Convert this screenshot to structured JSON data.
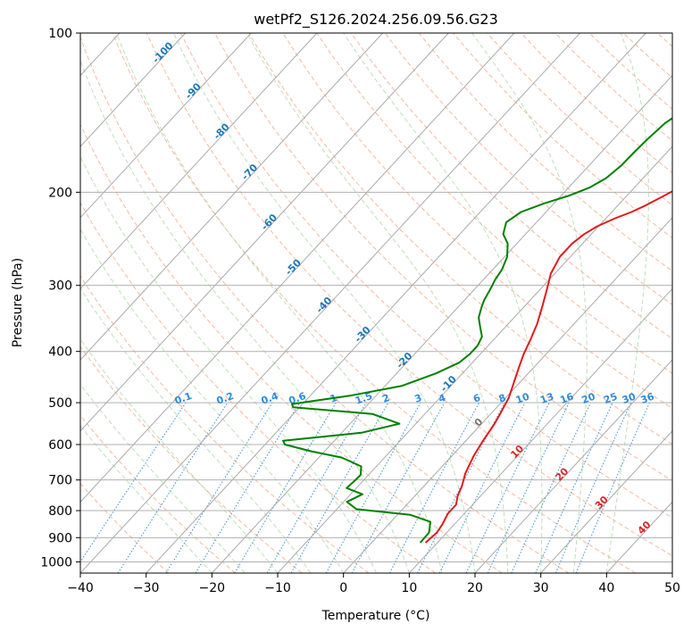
{
  "chart_data": {
    "type": "line",
    "title": "wetPf2_S126.2024.256.09.56.G23",
    "xlabel": "Temperature (°C)",
    "ylabel": "Pressure (hPa)",
    "xlim": [
      -40,
      50
    ],
    "ylim": [
      1050,
      100
    ],
    "y_scale": "log",
    "x_ticks": [
      -40,
      -30,
      -20,
      -10,
      0,
      10,
      20,
      30,
      40,
      50
    ],
    "y_ticks": [
      100,
      200,
      300,
      400,
      500,
      600,
      700,
      800,
      900,
      1000
    ],
    "grid": true,
    "background_lines": {
      "dry_adiabats": true,
      "moist_adiabats": true,
      "mixing_ratio_lines": true,
      "skewed_isotherms": true
    },
    "isotherm_labels": [
      "-100",
      "-90",
      "-80",
      "-70",
      "-60",
      "-50",
      "-40",
      "-30",
      "-20",
      "-10",
      "0",
      "10",
      "20",
      "30",
      "40"
    ],
    "mixing_ratio_labels": [
      "0.1",
      "0.2",
      "0.4",
      "0.6",
      "1",
      "1.5",
      "2",
      "3",
      "4",
      "6",
      "8",
      "10",
      "13",
      "16",
      "20",
      "25",
      "30",
      "36"
    ],
    "series": [
      {
        "color": "#e41a1c",
        "points": [
          [
            8.2,
            920
          ],
          [
            8.5,
            880
          ],
          [
            8.2,
            850
          ],
          [
            7.5,
            810
          ],
          [
            7.5,
            780
          ],
          [
            6.5,
            750
          ],
          [
            5.8,
            720
          ],
          [
            4.5,
            680
          ],
          [
            3.3,
            630
          ],
          [
            2.6,
            590
          ],
          [
            2,
            550
          ],
          [
            1.3,
            520
          ],
          [
            0.5,
            490
          ],
          [
            -0.8,
            460
          ],
          [
            -2.2,
            430
          ],
          [
            -3.4,
            405
          ],
          [
            -4.4,
            380
          ],
          [
            -5.6,
            355
          ],
          [
            -7.2,
            330
          ],
          [
            -9,
            305
          ],
          [
            -10.6,
            285
          ],
          [
            -11.6,
            265
          ],
          [
            -11.6,
            250
          ],
          [
            -11.1,
            240
          ],
          [
            -10.2,
            232
          ],
          [
            -8.6,
            224
          ],
          [
            -7,
            218
          ],
          [
            -5.8,
            212
          ],
          [
            -4.8,
            206
          ],
          [
            -3.8,
            200
          ],
          [
            -3,
            195
          ],
          [
            -2,
            190
          ],
          [
            -1.2,
            185
          ],
          [
            -0.5,
            180
          ],
          [
            0,
            175
          ],
          [
            0.5,
            170
          ],
          [
            0.9,
            165
          ],
          [
            1.6,
            155
          ],
          [
            2.3,
            145
          ],
          [
            2.8,
            138
          ],
          [
            3.6,
            130
          ],
          [
            4.6,
            123
          ],
          [
            6,
            116
          ],
          [
            7.8,
            110
          ],
          [
            9.7,
            104
          ],
          [
            11,
            100
          ]
        ]
      },
      {
        "color": "#008000",
        "points": [
          [
            7.4,
            920
          ],
          [
            7.3,
            880
          ],
          [
            6,
            840
          ],
          [
            2,
            815
          ],
          [
            -7,
            795
          ],
          [
            -9.5,
            770
          ],
          [
            -8.2,
            745
          ],
          [
            -11.5,
            725
          ],
          [
            -11.3,
            705
          ],
          [
            -11.2,
            685
          ],
          [
            -12.3,
            660
          ],
          [
            -16.5,
            635
          ],
          [
            -22,
            618
          ],
          [
            -27,
            600
          ],
          [
            -27.8,
            590
          ],
          [
            -17,
            570
          ],
          [
            -12.5,
            548
          ],
          [
            -18,
            525
          ],
          [
            -31,
            510
          ],
          [
            -31.6,
            503
          ],
          [
            -24,
            485
          ],
          [
            -17.5,
            465
          ],
          [
            -14,
            440
          ],
          [
            -12,
            420
          ],
          [
            -11.6,
            405
          ],
          [
            -11.6,
            390
          ],
          [
            -12.2,
            375
          ],
          [
            -13.8,
            360
          ],
          [
            -15.4,
            345
          ],
          [
            -16.4,
            330
          ],
          [
            -17,
            320
          ],
          [
            -17.6,
            305
          ],
          [
            -18.2,
            293
          ],
          [
            -18.6,
            280
          ],
          [
            -19.6,
            265
          ],
          [
            -21.4,
            250
          ],
          [
            -23.4,
            240
          ],
          [
            -24.6,
            228
          ],
          [
            -23.8,
            218
          ],
          [
            -21.5,
            210
          ],
          [
            -18.8,
            203
          ],
          [
            -16.8,
            196
          ],
          [
            -15.6,
            188
          ],
          [
            -15.1,
            178
          ],
          [
            -15,
            168
          ],
          [
            -14.8,
            158
          ],
          [
            -14.4,
            148
          ],
          [
            -13.6,
            142
          ],
          [
            -12.5,
            135
          ],
          [
            -10.7,
            128
          ],
          [
            -9.3,
            120
          ],
          [
            -8.2,
            114
          ],
          [
            -7.1,
            108
          ],
          [
            -6.2,
            103
          ],
          [
            -5.2,
            100
          ]
        ]
      }
    ]
  }
}
